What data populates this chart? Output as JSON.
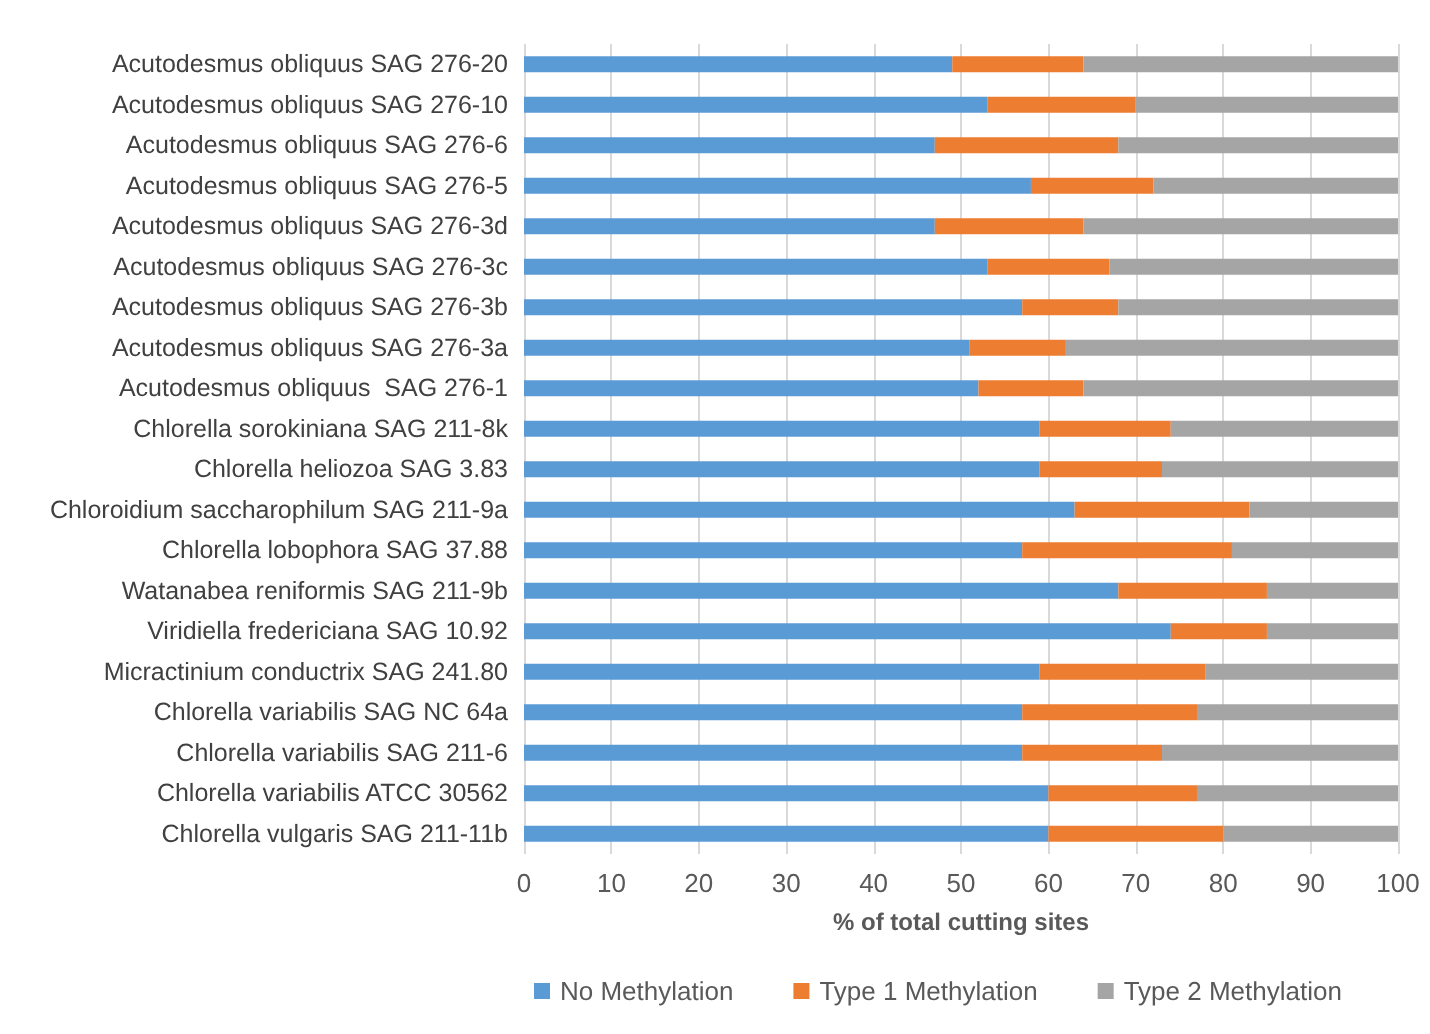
{
  "chart_data": {
    "type": "bar",
    "orientation": "horizontal",
    "stacked": true,
    "xlabel": "% of total cutting sites",
    "categories": [
      "Acutodesmus obliquus SAG 276-20",
      "Acutodesmus obliquus SAG 276-10",
      "Acutodesmus obliquus SAG 276-6",
      "Acutodesmus obliquus SAG 276-5",
      "Acutodesmus obliquus SAG 276-3d",
      "Acutodesmus obliquus SAG 276-3c",
      "Acutodesmus obliquus SAG 276-3b",
      "Acutodesmus obliquus SAG 276-3a",
      "Acutodesmus obliquus  SAG 276-1",
      "Chlorella sorokiniana SAG 211-8k",
      "Chlorella heliozoa SAG 3.83",
      "Chloroidium saccharophilum SAG 211-9a",
      "Chlorella lobophora SAG 37.88",
      "Watanabea reniformis SAG 211-9b",
      "Viridiella fredericiana SAG 10.92",
      "Micractinium conductrix SAG 241.80",
      "Chlorella variabilis SAG NC 64a",
      "Chlorella variabilis SAG 211-6",
      "Chlorella variabilis ATCC 30562",
      "Chlorella vulgaris SAG 211-11b"
    ],
    "series": [
      {
        "name": "No Methylation",
        "color": "#5b9bd5",
        "values": [
          49,
          53,
          47,
          58,
          47,
          53,
          57,
          51,
          52,
          59,
          59,
          63,
          57,
          68,
          74,
          59,
          57,
          57,
          60,
          60
        ]
      },
      {
        "name": "Type 1 Methylation",
        "color": "#ed7d31",
        "values": [
          15,
          17,
          21,
          14,
          17,
          14,
          11,
          11,
          12,
          15,
          14,
          20,
          24,
          17,
          11,
          19,
          20,
          16,
          17,
          20
        ]
      },
      {
        "name": "Type 2 Methylation",
        "color": "#a5a5a5",
        "values": [
          36,
          30,
          32,
          28,
          36,
          33,
          32,
          38,
          36,
          26,
          27,
          17,
          19,
          15,
          15,
          22,
          23,
          27,
          23,
          20
        ]
      }
    ],
    "xlim": [
      0,
      100
    ],
    "xticks": [
      0,
      10,
      20,
      30,
      40,
      50,
      60,
      70,
      80,
      90,
      100
    ],
    "grid": "x",
    "legend": "bottom"
  }
}
